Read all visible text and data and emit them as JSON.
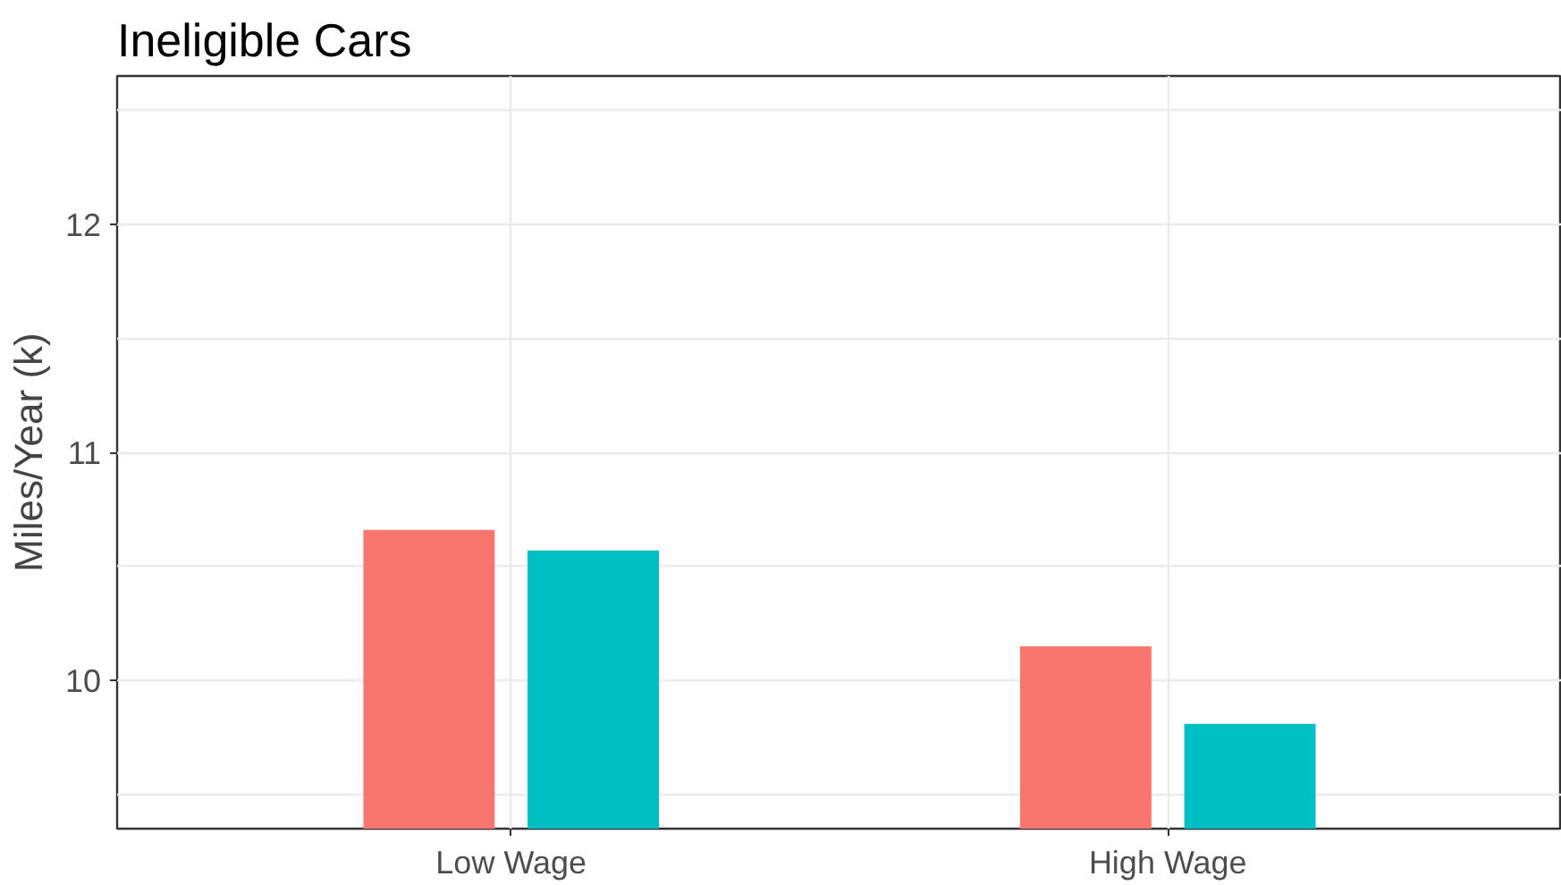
{
  "chart_data": {
    "type": "bar",
    "title": "Ineligible Cars",
    "ylabel": "Miles/Year (k)",
    "categories": [
      "Low Wage",
      "High Wage"
    ],
    "series": [
      {
        "color": "#f8766d",
        "values": [
          10.66,
          10.15
        ]
      },
      {
        "color": "#00bfc4",
        "values": [
          10.57,
          9.81
        ]
      }
    ],
    "ylim": [
      9.35,
      12.65
    ],
    "yticks": [
      {
        "value": 9.5,
        "label": null
      },
      10,
      {
        "value": 10.5,
        "label": null
      },
      11,
      {
        "value": 11.5,
        "label": null
      },
      12,
      {
        "value": 12.5,
        "label": null
      }
    ],
    "grid": true
  }
}
